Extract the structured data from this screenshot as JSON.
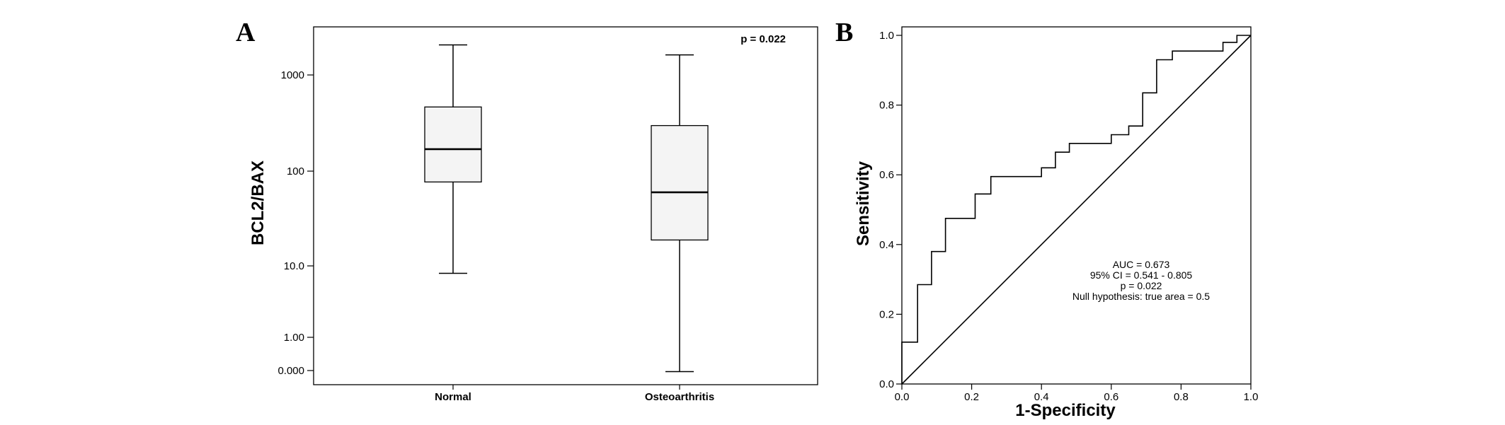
{
  "chart_data": [
    {
      "type": "box",
      "panel_label": "A",
      "ylabel": "BCL2/BAX",
      "y_scale": "log",
      "y_ticks": [
        "0.000",
        "1.00",
        "10.0",
        "100",
        "1000"
      ],
      "categories": [
        "Normal",
        "Osteoarthritis"
      ],
      "boxes": [
        {
          "category": "Normal",
          "min": 8.5,
          "q1": 77,
          "median": 170,
          "q3": 470,
          "max": 2100
        },
        {
          "category": "Osteoarthritis",
          "min": 0.1,
          "q1": 19,
          "median": 60,
          "q3": 300,
          "max": 1650
        }
      ],
      "annotation": "p = 0.022",
      "grid": false,
      "legend": "none"
    },
    {
      "type": "line",
      "panel_label": "B",
      "xlabel": "1-Specificity",
      "ylabel": "Sensitivity",
      "xlim": [
        0,
        1
      ],
      "ylim": [
        0,
        1
      ],
      "x_ticks": [
        "0.0",
        "0.2",
        "0.4",
        "0.6",
        "0.8",
        "1.0"
      ],
      "y_ticks": [
        "0.0",
        "0.2",
        "0.4",
        "0.6",
        "0.8",
        "1.0"
      ],
      "series": [
        {
          "line_style": "step",
          "x": [
            0,
            0,
            0.045,
            0.045,
            0.085,
            0.085,
            0.125,
            0.125,
            0.21,
            0.21,
            0.255,
            0.255,
            0.4,
            0.4,
            0.44,
            0.44,
            0.48,
            0.48,
            0.6,
            0.6,
            0.65,
            0.65,
            0.69,
            0.69,
            0.73,
            0.73,
            0.775,
            0.775,
            0.92,
            0.92,
            0.96,
            0.96,
            1.0
          ],
          "y": [
            0,
            0.12,
            0.12,
            0.285,
            0.285,
            0.38,
            0.38,
            0.475,
            0.475,
            0.545,
            0.545,
            0.595,
            0.595,
            0.62,
            0.62,
            0.665,
            0.665,
            0.69,
            0.69,
            0.715,
            0.715,
            0.74,
            0.74,
            0.835,
            0.835,
            0.93,
            0.93,
            0.955,
            0.955,
            0.98,
            0.98,
            1.0,
            1.0
          ]
        },
        {
          "line_style": "reference",
          "x": [
            0,
            1
          ],
          "y": [
            0,
            1
          ]
        }
      ],
      "annotations": [
        "AUC = 0.673",
        "95% CI = 0.541 - 0.805",
        "p = 0.022",
        "Null hypothesis: true area = 0.5"
      ],
      "grid": false,
      "legend": "none"
    }
  ]
}
